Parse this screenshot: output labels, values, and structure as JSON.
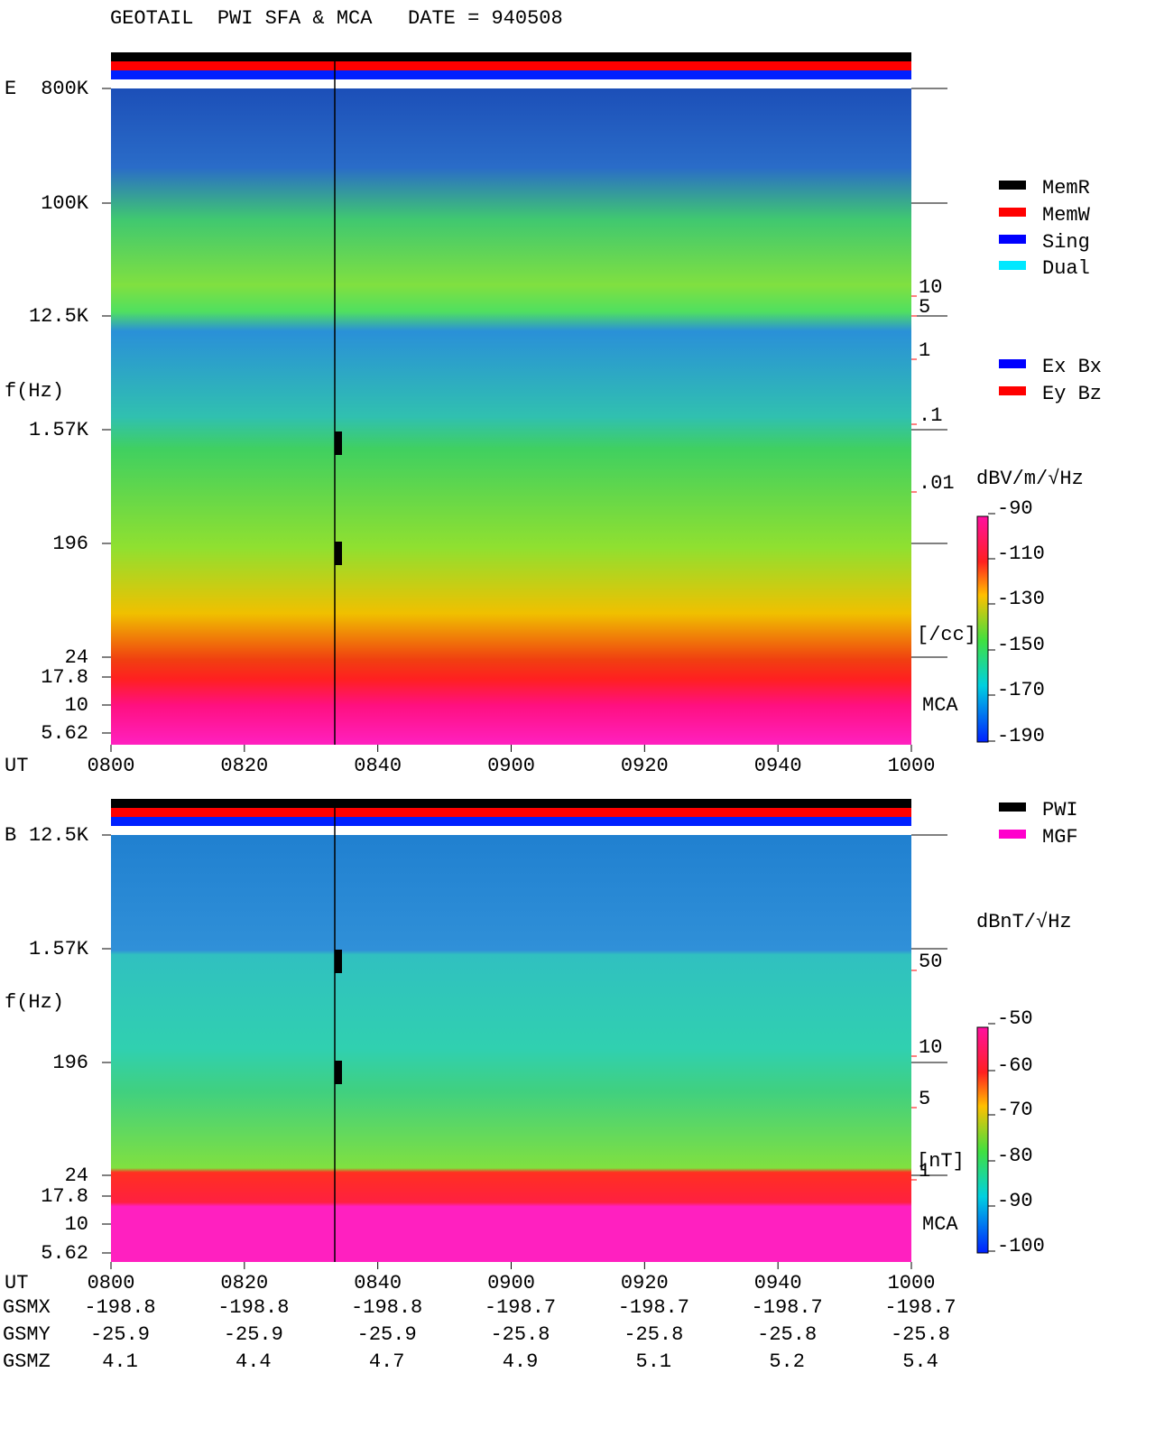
{
  "header": {
    "title": "GEOTAIL  PWI SFA & MCA   DATE = 940508"
  },
  "panels": [
    {
      "label": "E",
      "y_label": "f(Hz)",
      "freq_ticks": [
        "800K",
        "100K",
        "12.5K",
        "1.57K",
        "196",
        "24",
        "17.8",
        "10",
        "5.62"
      ],
      "time_label": "UT",
      "time_ticks": [
        "0800",
        "0820",
        "0840",
        "0900",
        "0920",
        "0940",
        "1000"
      ],
      "mca_label": "MCA",
      "density_ticks": [
        "10",
        "5",
        "1",
        ".1",
        ".01"
      ],
      "density_unit": "[/cc]",
      "colorbar": {
        "unit": "dBV/m/√Hz",
        "ticks": [
          "-90",
          "-110",
          "-130",
          "-150",
          "-170",
          "-190"
        ]
      },
      "legend": [
        {
          "name": "MemR",
          "color": "#000000"
        },
        {
          "name": "MemW",
          "color": "#ff0000"
        },
        {
          "name": "Sing",
          "color": "#0000ff"
        },
        {
          "name": "Dual",
          "color": "#00e8ff"
        }
      ],
      "channel_legend": [
        {
          "name": "Ex Bx",
          "color": "#0000ff"
        },
        {
          "name": "Ey Bz",
          "color": "#ff0000"
        }
      ]
    },
    {
      "label": "B",
      "y_label": "f(Hz)",
      "freq_ticks": [
        "12.5K",
        "1.57K",
        "196",
        "24",
        "17.8",
        "10",
        "5.62"
      ],
      "time_label": "UT",
      "time_ticks": [
        "0800",
        "0820",
        "0840",
        "0900",
        "0920",
        "0940",
        "1000"
      ],
      "mca_label": "MCA",
      "density_ticks": [
        "50",
        "10",
        "5",
        "1"
      ],
      "density_unit": "[nT]",
      "colorbar": {
        "unit": "dBnT/√Hz",
        "ticks": [
          "-50",
          "-60",
          "-70",
          "-80",
          "-90",
          "-100"
        ]
      },
      "legend": [
        {
          "name": "PWI",
          "color": "#000000"
        },
        {
          "name": "MGF",
          "color": "#ff00cc"
        }
      ]
    }
  ],
  "orbit": [
    {
      "name": "GSMX",
      "values": [
        "-198.8",
        "-198.8",
        "-198.8",
        "-198.7",
        "-198.7",
        "-198.7",
        "-198.7"
      ]
    },
    {
      "name": "GSMY",
      "values": [
        "-25.9",
        "-25.9",
        "-25.9",
        "-25.8",
        "-25.8",
        "-25.8",
        "-25.8"
      ]
    },
    {
      "name": "GSMZ",
      "values": [
        "4.1",
        "4.4",
        "4.7",
        "4.9",
        "5.1",
        "5.2",
        "5.4"
      ]
    }
  ]
}
